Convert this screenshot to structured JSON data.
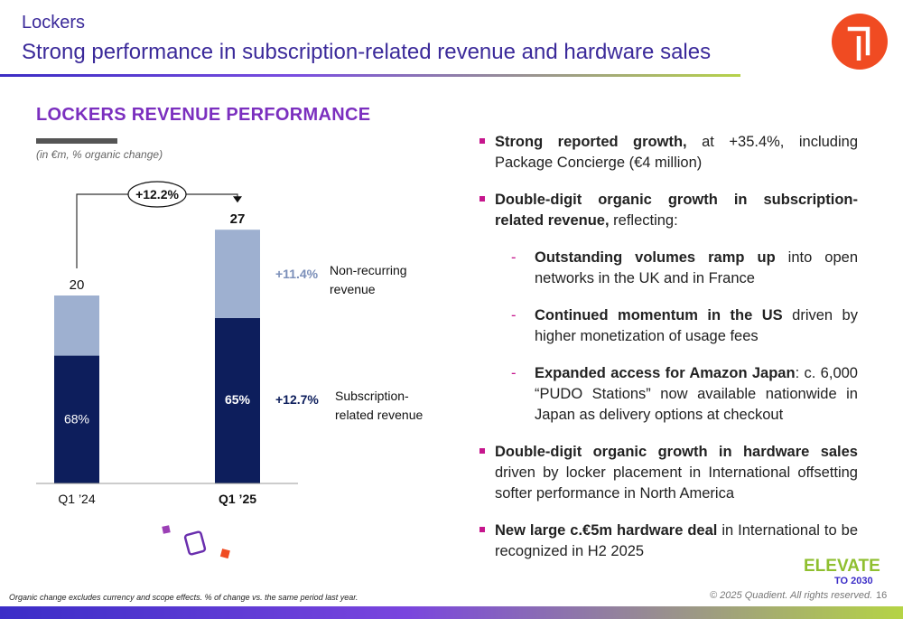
{
  "header": {
    "section": "Lockers",
    "title": "Strong performance in subscription-related revenue and hardware sales"
  },
  "chart_heading": "LOCKERS REVENUE PERFORMANCE",
  "units_note": "(in €m, % organic change)",
  "chart_data": {
    "type": "bar",
    "stacked": true,
    "categories": [
      "Q1 ’24",
      "Q1 ’25"
    ],
    "totals": [
      20,
      27
    ],
    "series": [
      {
        "name": "Subscription-related revenue",
        "values": [
          13.6,
          17.6
        ],
        "share_labels": [
          "68%",
          "65%"
        ],
        "growth": "+12.7%",
        "color": "#0d1e5c"
      },
      {
        "name": "Non-recurring revenue",
        "values": [
          6.4,
          9.4
        ],
        "growth": "+11.4%",
        "color": "#9eb0d0"
      }
    ],
    "overall_growth": "+12.2%",
    "ylim": [
      0,
      30
    ]
  },
  "legend": {
    "nonrecurring_line1": "Non-recurring",
    "nonrecurring_line2": "revenue",
    "subscription_line1": "Subscription-",
    "subscription_line2": "related revenue"
  },
  "bullets": {
    "b1_bold": "Strong reported growth,",
    "b1_text": " at +35.4%, including Package Concierge (€4 million)",
    "b2_bold": "Double-digit organic growth in subscription-related revenue,",
    "b2_text": " reflecting:",
    "s1_bold": "Outstanding volumes ramp up",
    "s1_text": " into open networks in the UK and in France",
    "s2_bold": "Continued momentum in the US",
    "s2_text": " driven by higher monetization of usage fees",
    "s3_bold": "Expanded access for Amazon Japan",
    "s3_text": ": c. 6,000 “PUDO Stations” now available nationwide in Japan as delivery options at checkout",
    "b3_bold": "Double-digit organic growth in hardware sales",
    "b3_text": " driven by locker placement in International offsetting softer performance in North America",
    "b4_bold": "New large c.€5m hardware deal",
    "b4_text": " in International to be recognized in H2 2025"
  },
  "footer": {
    "footnote": "Organic change excludes currency and scope effects. % of change vs. the same period last year.",
    "copyright": "© 2025 Quadient. All rights reserved.",
    "page": "16",
    "elevate_word": "ELEVATE",
    "elevate_sub": "TO 2030"
  },
  "colors": {
    "accent_purple": "#3b2a9a",
    "heading_purple": "#7b2fbf",
    "bullet_magenta": "#c6168d",
    "logo_orange": "#f04b22"
  }
}
